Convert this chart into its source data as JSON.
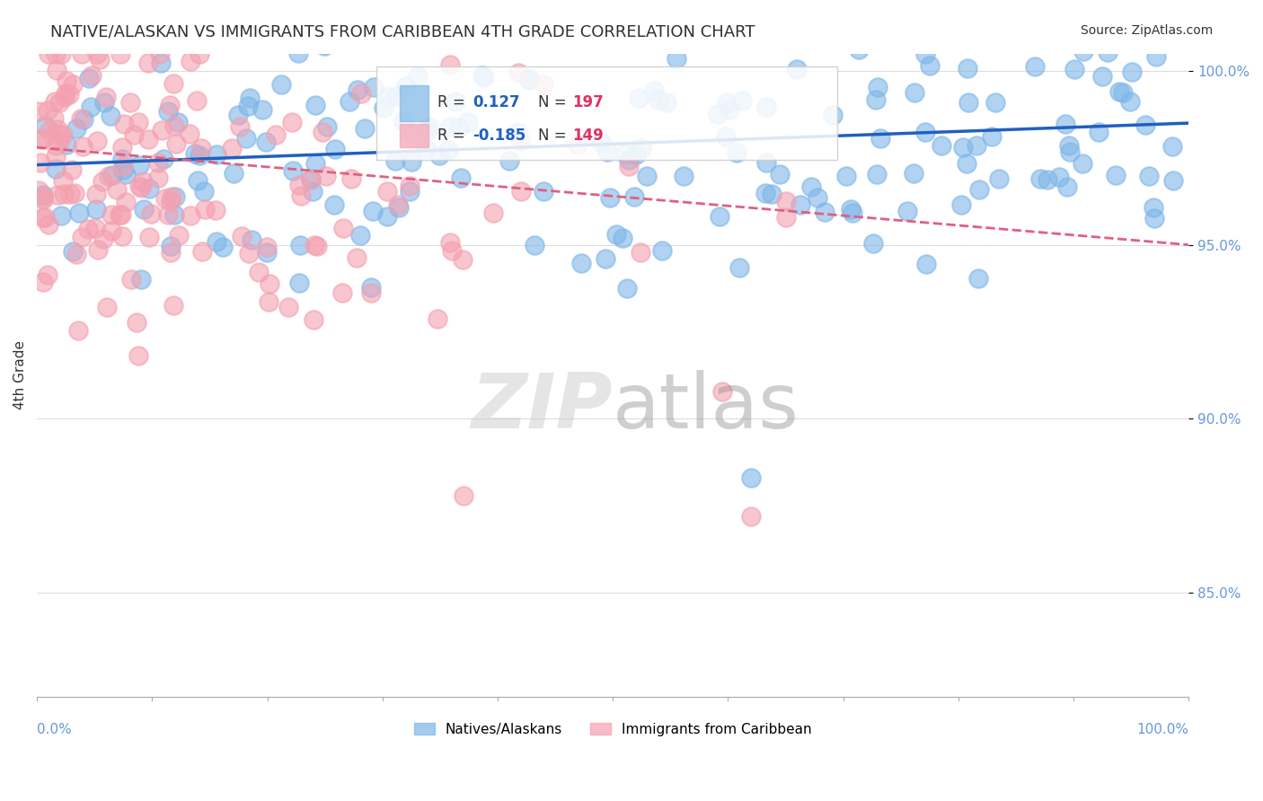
{
  "title": "NATIVE/ALASKAN VS IMMIGRANTS FROM CARIBBEAN 4TH GRADE CORRELATION CHART",
  "source": "Source: ZipAtlas.com",
  "ylabel": "4th Grade",
  "blue_R": 0.127,
  "blue_N": 197,
  "pink_R": -0.185,
  "pink_N": 149,
  "blue_label": "Natives/Alaskans",
  "pink_label": "Immigrants from Caribbean",
  "xlim": [
    0.0,
    1.0
  ],
  "ylim": [
    0.82,
    1.005
  ],
  "yticks": [
    0.85,
    0.9,
    0.95,
    1.0
  ],
  "ytick_labels": [
    "85.0%",
    "90.0%",
    "95.0%",
    "100.0%"
  ],
  "blue_color": "#7EB6E8",
  "pink_color": "#F4A0B0",
  "blue_line_color": "#2060C0",
  "pink_line_color": "#E06080",
  "legend_R_color": "#2060C0",
  "legend_N_color": "#E03060",
  "bg_color": "#FFFFFF",
  "grid_color": "#DDDDDD",
  "title_color": "#303030",
  "blue_slope": 0.012,
  "blue_intercept": 0.973,
  "pink_slope": -0.028,
  "pink_intercept": 0.978
}
